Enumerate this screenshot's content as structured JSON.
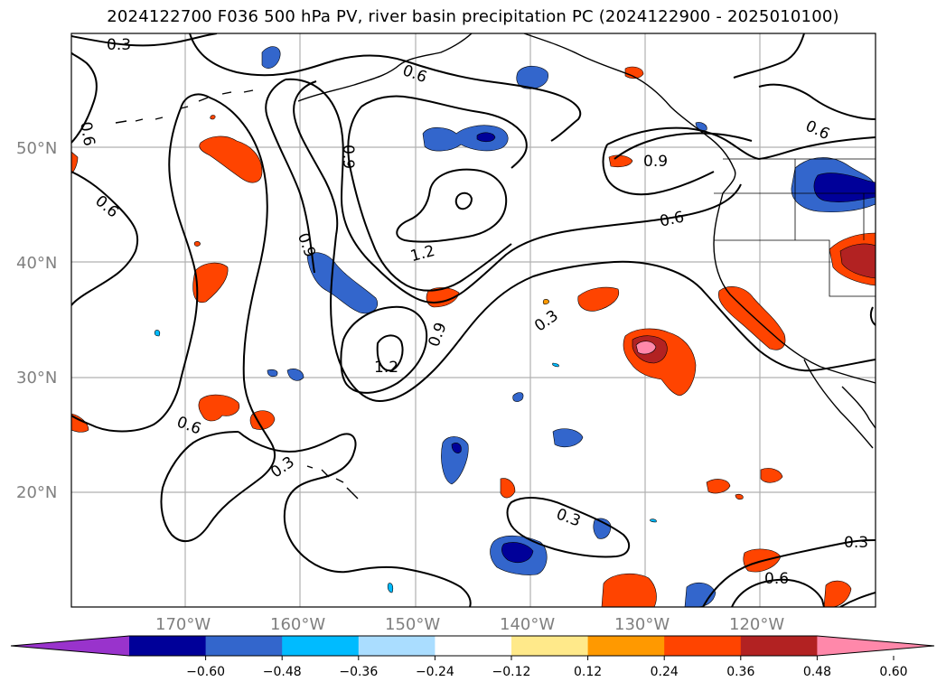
{
  "title": "2024122700 F036 500 hPa PV, river basin precipitation PC (2024122900 - 2025010100)",
  "map": {
    "lon_range": [
      -180,
      -110
    ],
    "lat_range": [
      10,
      60
    ],
    "lat_labels": [
      "50°N",
      "40°N",
      "30°N",
      "20°N"
    ],
    "lon_labels": [
      "170°W",
      "160°W",
      "150°W",
      "140°W",
      "130°W",
      "120°W"
    ],
    "grid_color": "#b0b0b0"
  },
  "contours": {
    "field": "500 hPa PV",
    "labels": [
      "0.3",
      "0.6",
      "0.6",
      "0.6",
      "0.6",
      "0.9",
      "0.9",
      "0.9",
      "0.9",
      "1.2",
      "1.2",
      "0.3",
      "0.3",
      "0.6",
      "0.3",
      "0.6",
      "0.3",
      "0.6",
      "0.6",
      "0.3",
      "0.9"
    ]
  },
  "colorbar": {
    "tick_labels": [
      "−0.60",
      "−0.48",
      "−0.36",
      "−0.24",
      "−0.12",
      "0.12",
      "0.24",
      "0.36",
      "0.48",
      "0.60"
    ],
    "colors": [
      "#9933cc",
      "#000099",
      "#3366cc",
      "#00bbff",
      "#aaddff",
      "#ffffff",
      "#ffe98a",
      "#ff9900",
      "#ff4400",
      "#b22222",
      "#ff88aa"
    ],
    "extend": "both"
  }
}
